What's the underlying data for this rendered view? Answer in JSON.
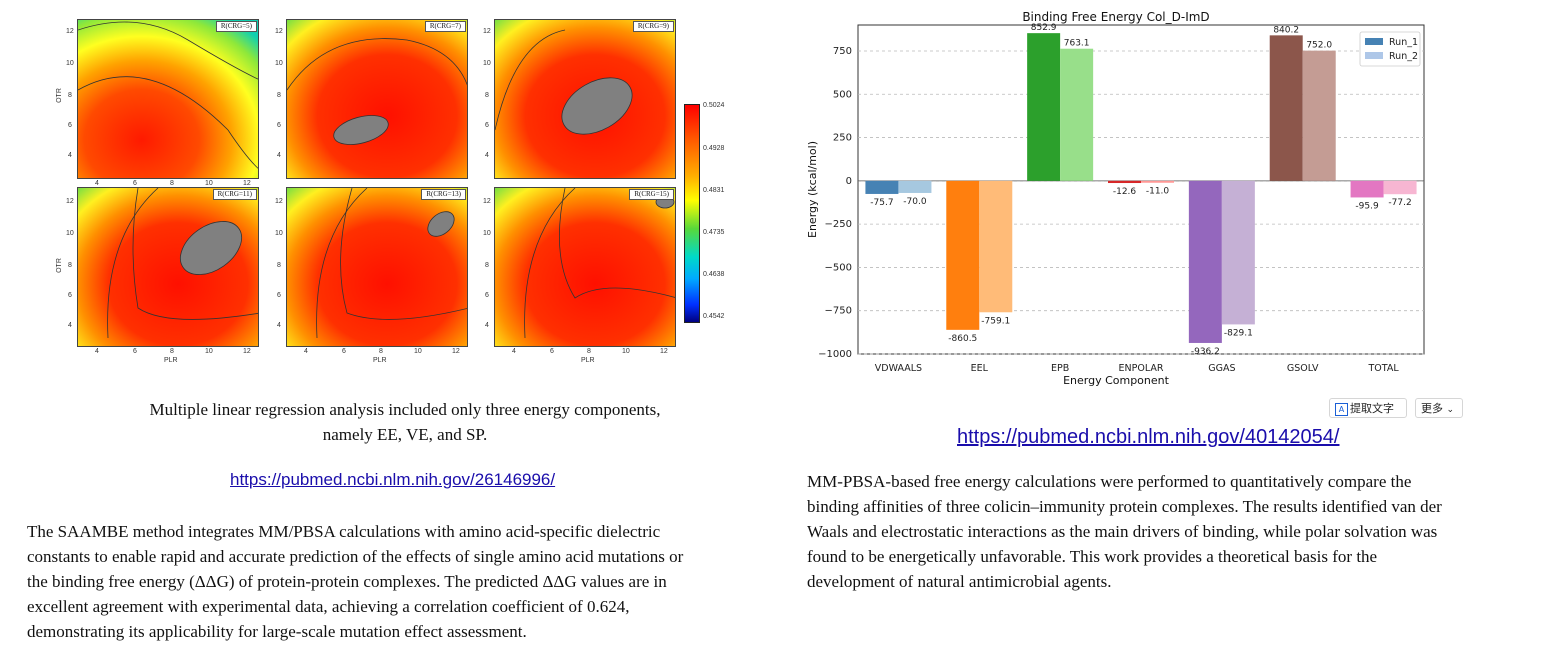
{
  "left_figure": {
    "panels": [
      {
        "label": "R(CRG=5)"
      },
      {
        "label": "R(CRG=7)"
      },
      {
        "label": "R(CRG=9)"
      },
      {
        "label": "R(CRG=11)"
      },
      {
        "label": "R(CRG=13)"
      },
      {
        "label": "R(CRG=15)"
      }
    ],
    "x_ticks": [
      "4",
      "6",
      "8",
      "10",
      "12"
    ],
    "y_ticks": [
      "12",
      "10",
      "8",
      "6",
      "4"
    ],
    "x_axis_label": "PLR",
    "y_axis_label": "OTR",
    "colorbar_ticks": [
      "0.5024",
      "0.4928",
      "0.4831",
      "0.4735",
      "0.4638",
      "0.4542"
    ]
  },
  "left_caption": {
    "line1": "Multiple linear regression analysis included only three energy components,",
    "line2": "namely EE, VE, and SP."
  },
  "left_link": "https://pubmed.ncbi.nlm.nih.gov/26146996/",
  "left_paragraph": {
    "line1": "The SAAMBE method integrates MM/PBSA calculations with amino acid-specific dielectric",
    "line2": "constants to enable rapid and accurate prediction of the effects of single amino acid mutations or",
    "line3": "the binding free energy (ΔΔG) of protein-protein complexes. The predicted ΔΔG values are in",
    "line4": "excellent agreement with experimental data, achieving a correlation coefficient of 0.624,",
    "line5": "demonstrating its applicability for large-scale mutation effect assessment."
  },
  "chart_data": {
    "type": "bar",
    "title": "Binding Free Energy Col_D-ImD",
    "xlabel": "Energy Component",
    "ylabel": "Energy (kcal/mol)",
    "categories": [
      "VDWAALS",
      "EEL",
      "EPB",
      "ENPOLAR",
      "GGAS",
      "GSOLV",
      "TOTAL"
    ],
    "series": [
      {
        "name": "Run_1",
        "values": [
          -75.7,
          -860.5,
          852.9,
          -12.6,
          -936.2,
          840.2,
          -95.9
        ]
      },
      {
        "name": "Run_2",
        "values": [
          -70.0,
          -759.1,
          763.1,
          -11.0,
          -829.1,
          752.0,
          -77.2
        ]
      }
    ],
    "value_labels": [
      [
        "-75.7",
        "-860.5",
        "852.9",
        "-12.6",
        "-936.2",
        "840.2",
        "-95.9"
      ],
      [
        "-70.0",
        "-759.1",
        "763.1",
        "-11.0",
        "-829.1",
        "752.0",
        "-77.2"
      ]
    ],
    "ylim": [
      -1000,
      900
    ],
    "yticks": [
      750,
      500,
      250,
      0,
      -250,
      -500,
      -750,
      -1000
    ],
    "ytick_labels": [
      "750",
      "500",
      "250",
      "0",
      "−250",
      "−500",
      "−750",
      "−1000"
    ],
    "grid": true,
    "legend_position": "top-right",
    "colors": {
      "run1": [
        "#4682b4",
        "#ff7f0e",
        "#2ca02c",
        "#d62728",
        "#9467bd",
        "#8c564b",
        "#e377c2"
      ],
      "run2": [
        "#a6c8e0",
        "#ffbb78",
        "#98df8a",
        "#ff9896",
        "#c5b0d5",
        "#c49c94",
        "#f7b6d2"
      ],
      "legend_run1": "#4682b4",
      "legend_run2": "#aec7e8"
    }
  },
  "toolbar": {
    "extract_text_label": "提取文字",
    "more_label": "更多"
  },
  "right_link": "https://pubmed.ncbi.nlm.nih.gov/40142054/",
  "right_paragraph": {
    "line1": "MM-PBSA-based free energy calculations were performed to quantitatively compare the",
    "line2": "binding affinities of three colicin–immunity protein complexes. The results identified van der",
    "line3": "Waals and electrostatic interactions as the main drivers of binding, while polar solvation was",
    "line4": "found to be energetically unfavorable. This work provides a theoretical basis for the",
    "line5": "development of natural antimicrobial agents."
  }
}
